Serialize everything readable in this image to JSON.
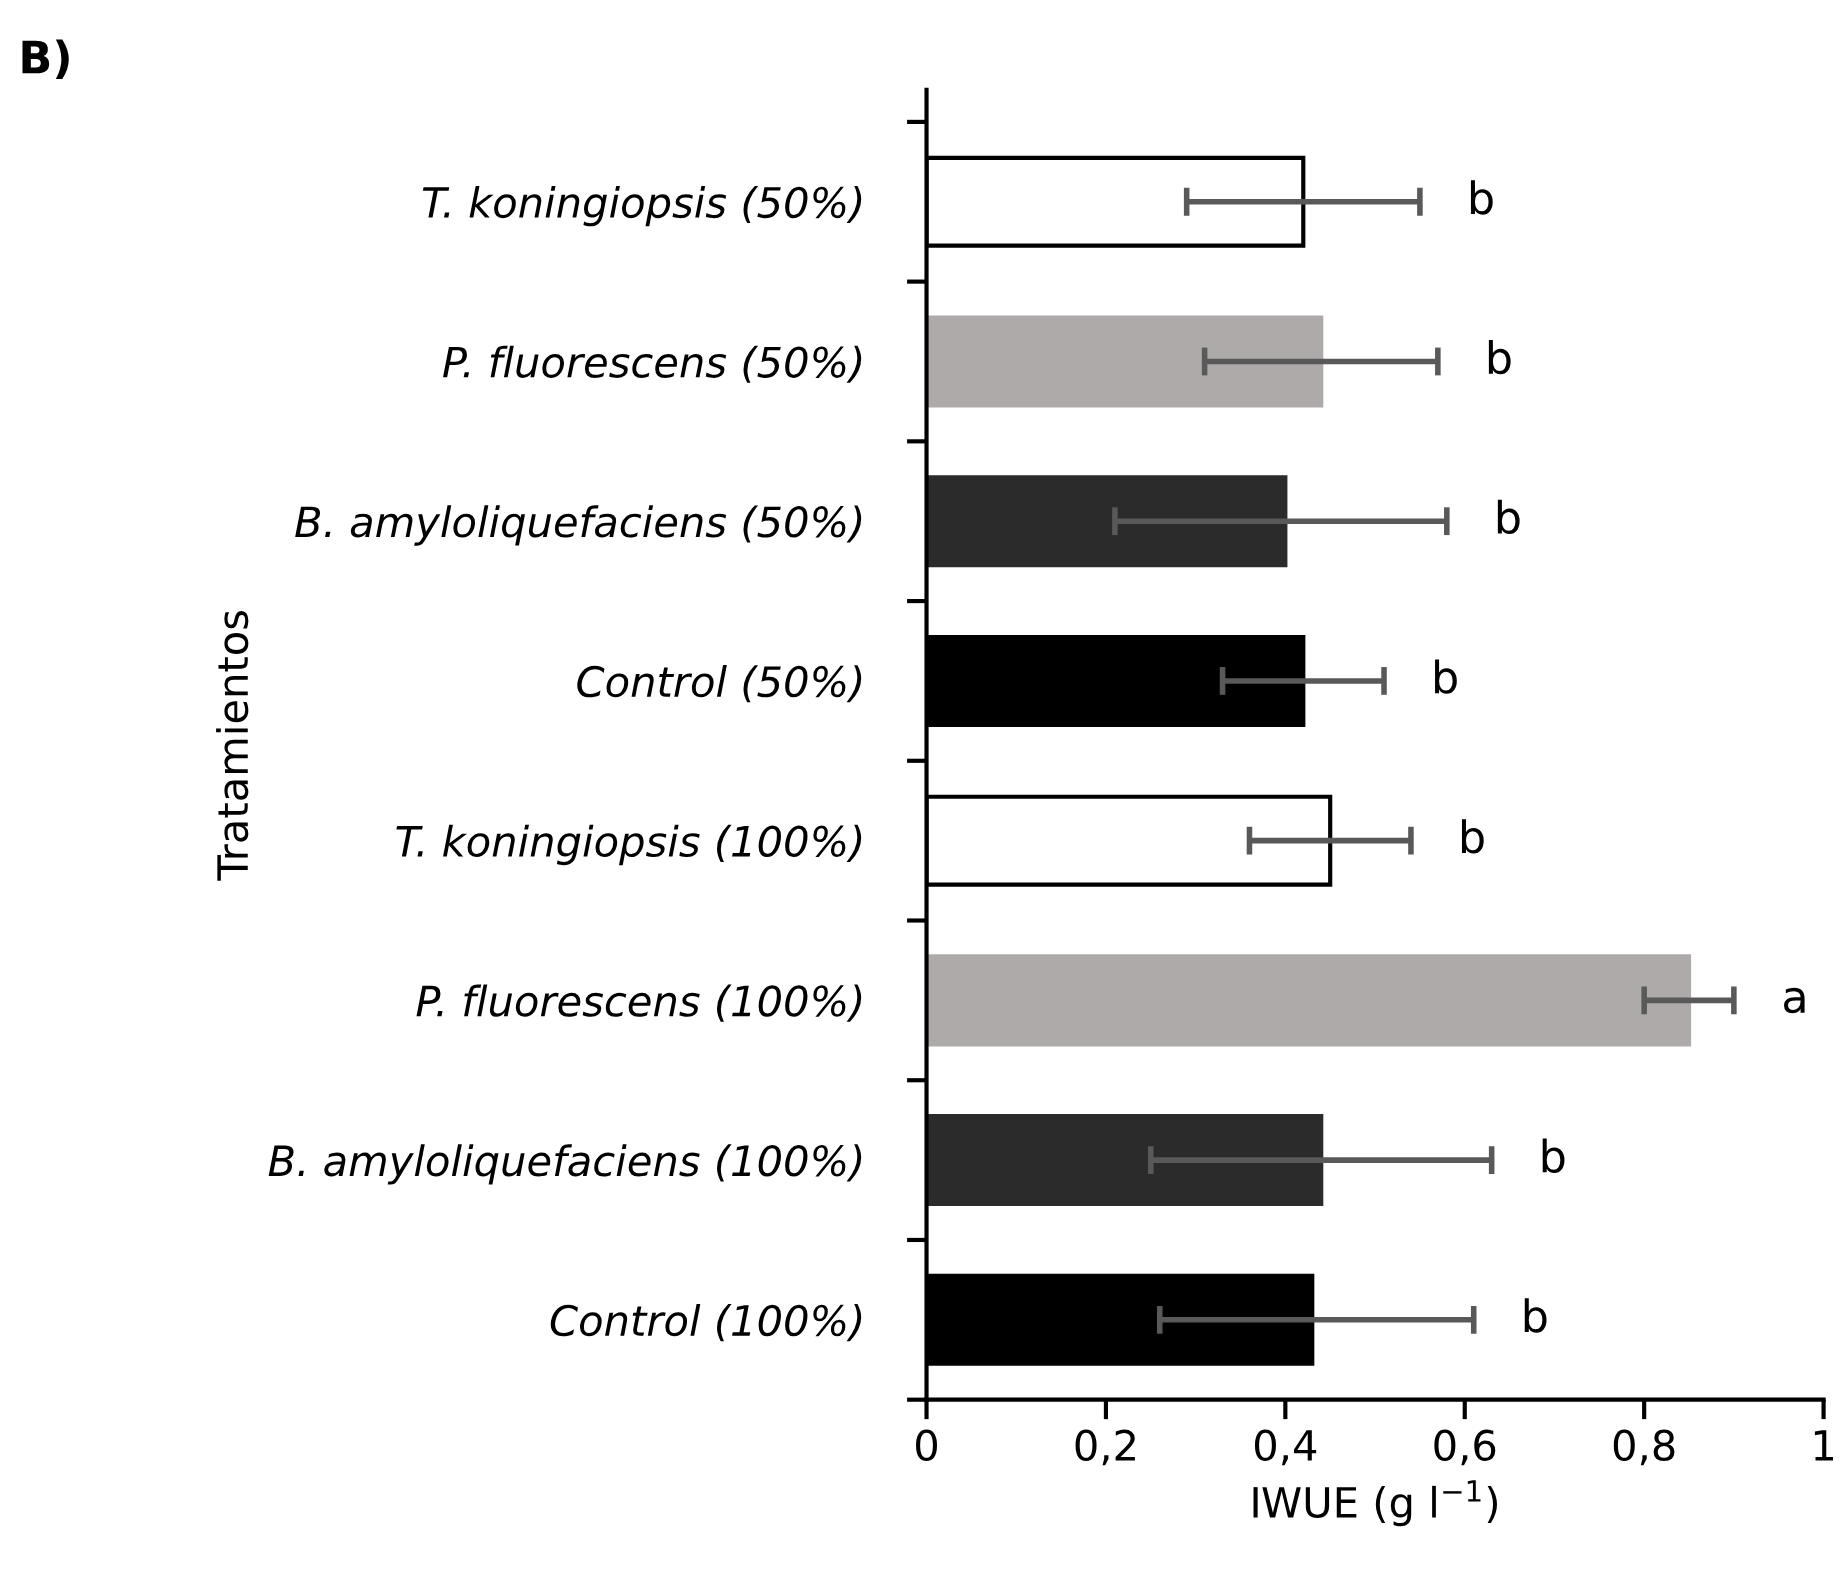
{
  "chart_data": {
    "type": "bar",
    "orientation": "horizontal",
    "title": "B)",
    "xlabel": "IWUE (g l$^{−1}$)",
    "ylabel": "Tratamientos",
    "categories": [
      "T. koningiopsis (50%)",
      "P. fluorescens (50%)",
      "B. amyloliquefaciens (50%)",
      "Control (50%)",
      "T. koningiopsis (100%)",
      "P. fluorescens (100%)",
      "B. amyloliquefaciens (100%)",
      "Control (100%)"
    ],
    "values": [
      0.42,
      0.44,
      0.4,
      0.42,
      0.45,
      0.85,
      0.44,
      0.43
    ],
    "errors": [
      [
        0.29,
        0.55
      ],
      [
        0.31,
        0.57
      ],
      [
        0.21,
        0.58
      ],
      [
        0.33,
        0.51
      ],
      [
        0.36,
        0.54
      ],
      [
        0.8,
        0.9
      ],
      [
        0.25,
        0.63
      ],
      [
        0.26,
        0.61
      ]
    ],
    "colors": [
      "#ffffff",
      "#aeaaaa",
      "#2b2b2b",
      "#000000",
      "#ffffff",
      "#aeaaaa",
      "#2b2b2b",
      "#000000"
    ],
    "xlim": [
      0,
      1
    ],
    "xticks": [
      0,
      {
        "value": 0.2,
        "label": "0,2"
      },
      {
        "value": 0.4,
        "label": "0,4"
      },
      {
        "value": 0.6,
        "label": "0,6"
      },
      {
        "value": 0.8,
        "label": "0,8"
      },
      1
    ],
    "annotations": [
      {
        "text": "b",
        "x": 0.55,
        "y": "T. koningiopsis (50%)"
      },
      {
        "text": "b",
        "x": 0.57,
        "y": "P. fluorescens (50%)"
      },
      {
        "text": "b",
        "x": 0.58,
        "y": "B. amyloliquefaciens (50%)"
      },
      {
        "text": "b",
        "x": 0.51,
        "y": "Control (50%)"
      },
      {
        "text": "b",
        "x": 0.54,
        "y": "T. koningiopsis (100%)"
      },
      {
        "text": "a",
        "x": 0.9,
        "y": "P. fluorescens (100%)"
      },
      {
        "text": "b",
        "x": 0.63,
        "y": "B. amyloliquefaciens (100%)"
      },
      {
        "text": "b",
        "x": 0.61,
        "y": "Control (100%)"
      }
    ],
    "grid": false,
    "legend": false
  }
}
